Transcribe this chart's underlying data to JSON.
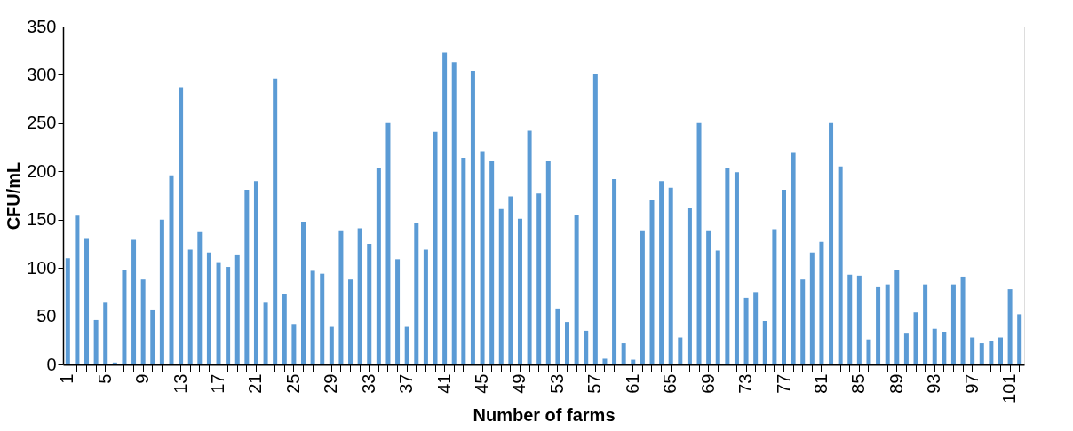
{
  "chart_data": {
    "type": "bar",
    "xlabel": "Number of farms",
    "ylabel": "CFU/mL",
    "categories": [
      "1",
      null,
      null,
      null,
      "5",
      null,
      null,
      null,
      "9",
      null,
      null,
      null,
      "13",
      null,
      null,
      null,
      "17",
      null,
      null,
      null,
      "21",
      null,
      null,
      null,
      "25",
      null,
      null,
      null,
      "29",
      null,
      null,
      null,
      "33",
      null,
      null,
      null,
      "37",
      null,
      null,
      null,
      "41",
      null,
      null,
      null,
      "45",
      null,
      null,
      null,
      "49",
      null,
      null,
      null,
      "53",
      null,
      null,
      null,
      "57",
      null,
      null,
      null,
      "61",
      null,
      null,
      null,
      "65",
      null,
      null,
      null,
      "69",
      null,
      null,
      null,
      "73",
      null,
      null,
      null,
      "77",
      null,
      null,
      null,
      "81",
      null,
      null,
      null,
      "85",
      null,
      null,
      null,
      "89",
      null,
      null,
      null,
      "93",
      null,
      null,
      null,
      "97",
      null,
      null,
      null,
      "101",
      null
    ],
    "values": [
      110,
      154,
      131,
      46,
      64,
      2,
      98,
      129,
      88,
      57,
      150,
      196,
      287,
      119,
      137,
      116,
      106,
      101,
      114,
      181,
      190,
      64,
      296,
      73,
      42,
      148,
      97,
      94,
      39,
      139,
      88,
      141,
      125,
      204,
      250,
      109,
      39,
      146,
      119,
      241,
      323,
      313,
      214,
      304,
      221,
      211,
      161,
      174,
      151,
      242,
      177,
      211,
      58,
      44,
      155,
      35,
      301,
      6,
      192,
      22,
      5,
      139,
      170,
      190,
      183,
      28,
      162,
      250,
      139,
      118,
      204,
      199,
      69,
      75,
      45,
      140,
      181,
      220,
      88,
      116,
      127,
      250,
      205,
      93,
      92,
      26,
      80,
      83,
      98,
      32,
      54,
      83,
      37,
      34,
      83,
      91,
      28,
      22,
      24,
      28,
      78,
      52
    ],
    "color": "#5b9bd5",
    "ylim": [
      0,
      350
    ],
    "yticks": [
      0,
      50,
      100,
      150,
      200,
      250,
      300,
      350
    ]
  }
}
